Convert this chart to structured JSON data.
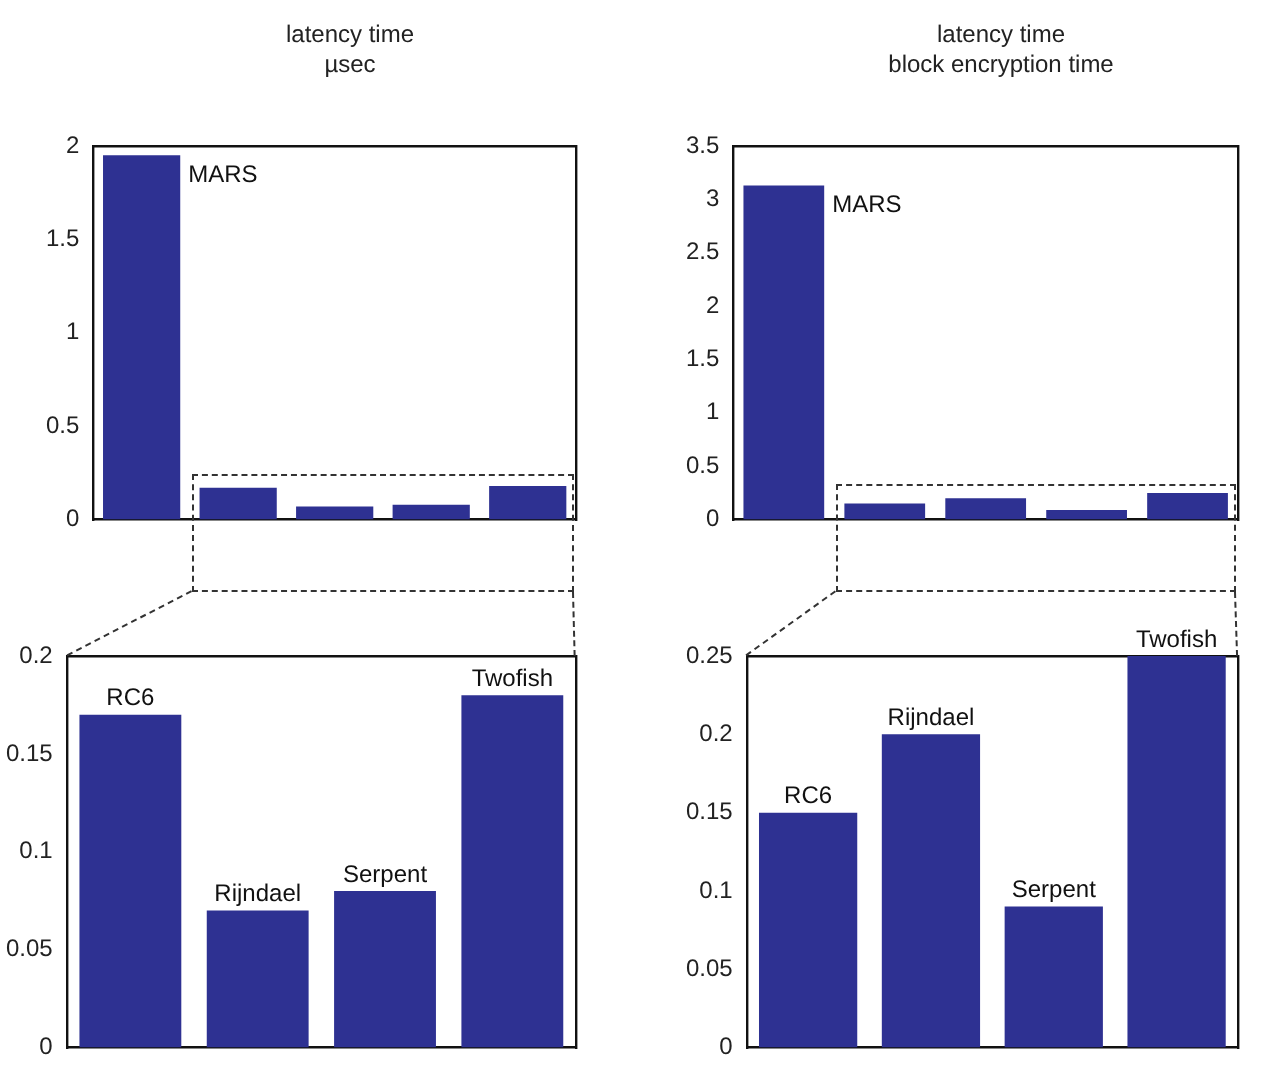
{
  "chart_data": [
    {
      "type": "bar",
      "title": "latency time",
      "subtitle": "µsec",
      "categories": [
        null,
        null,
        null,
        null,
        null
      ],
      "annotations": [
        "MARS"
      ],
      "values": [
        1.95,
        0.17,
        0.07,
        0.08,
        0.18
      ],
      "color": "#2e3192",
      "ylim": [
        0,
        2
      ],
      "yticks": [
        0,
        0.5,
        1,
        1.5,
        2
      ],
      "grid": false,
      "legend": false,
      "tick_labels": "y"
    },
    {
      "type": "bar",
      "title": "latency time",
      "subtitle": "block encryption time",
      "categories": [
        null,
        null,
        null,
        null,
        null
      ],
      "annotations": [
        "MARS"
      ],
      "values": [
        3.13,
        0.15,
        0.2,
        0.09,
        0.25
      ],
      "color": "#2e3192",
      "ylim": [
        0,
        3.5
      ],
      "yticks": [
        0,
        0.5,
        1,
        1.5,
        2,
        2.5,
        3,
        3.5
      ],
      "grid": false,
      "legend": false,
      "tick_labels": "y"
    },
    {
      "type": "bar",
      "categories": [
        "RC6",
        "Rijndael",
        "Serpent",
        "Twofish"
      ],
      "values": [
        0.17,
        0.07,
        0.08,
        0.18
      ],
      "color": "#2e3192",
      "ylim": [
        0,
        0.2
      ],
      "yticks": [
        0,
        0.05,
        0.1,
        0.15,
        0.2
      ],
      "grid": false,
      "legend": false,
      "tick_labels": "y"
    },
    {
      "type": "bar",
      "categories": [
        "RC6",
        "Rijndael",
        "Serpent",
        "Twofish"
      ],
      "values": [
        0.15,
        0.2,
        0.09,
        0.25
      ],
      "color": "#2e3192",
      "ylim": [
        0,
        0.25
      ],
      "yticks": [
        0,
        0.05,
        0.1,
        0.15,
        0.2,
        0.25
      ],
      "grid": false,
      "legend": false,
      "tick_labels": "y"
    }
  ]
}
